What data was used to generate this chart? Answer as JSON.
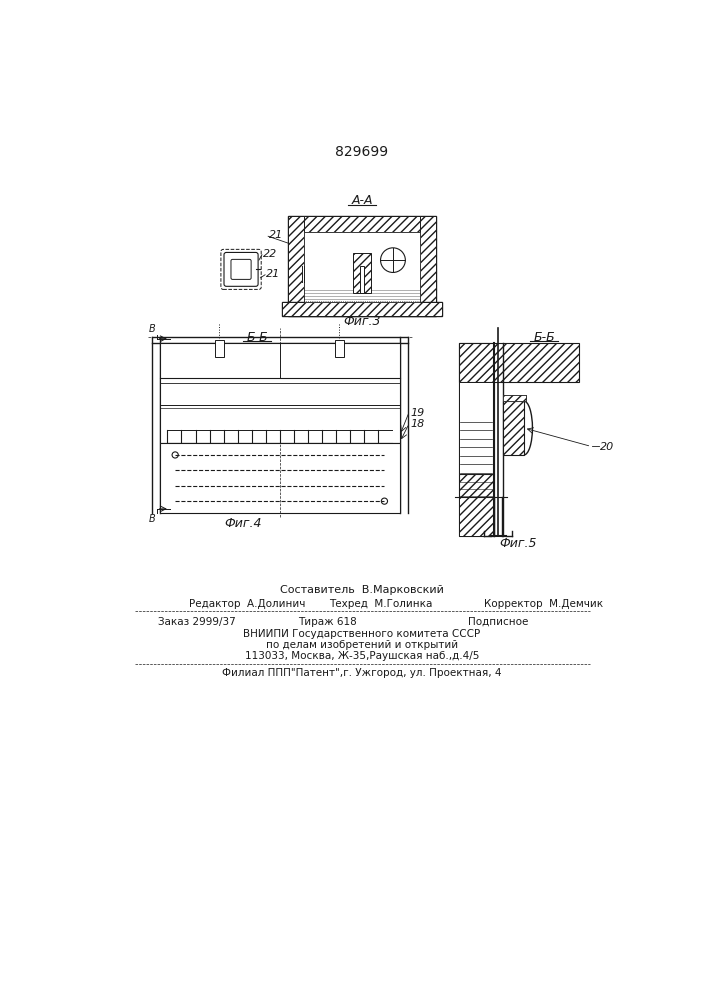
{
  "patent_number": "829699",
  "bg_color": "#ffffff",
  "line_color": "#1a1a1a",
  "fig3_label": "A-A",
  "fig3_caption": "Фиг.3",
  "fig4_label": "Б-Б",
  "fig4_caption": "Фиг.4",
  "fig5_label": "Б-Б",
  "fig5_caption": "Фиг.5",
  "footer_line1": "Составитель  В.Марковский",
  "footer_line2a": "Редактор  А.Долинич",
  "footer_line2b": "Техред  М.Голинка",
  "footer_line2c": "Корректор  М.Демчик",
  "footer_line3a": "Заказ 2999/37",
  "footer_line3b": "Тираж 618",
  "footer_line3c": "Подписное",
  "footer_line4": "ВНИИПИ Государственного комитета СССР",
  "footer_line5": "по делам изобретений и открытий",
  "footer_line6": "113033, Москва, Ж-35,Раушская наб.,д.4/5",
  "footer_line7": "Филиал ППП\"Патент\",г. Ужгород, ул. Проектная, 4"
}
